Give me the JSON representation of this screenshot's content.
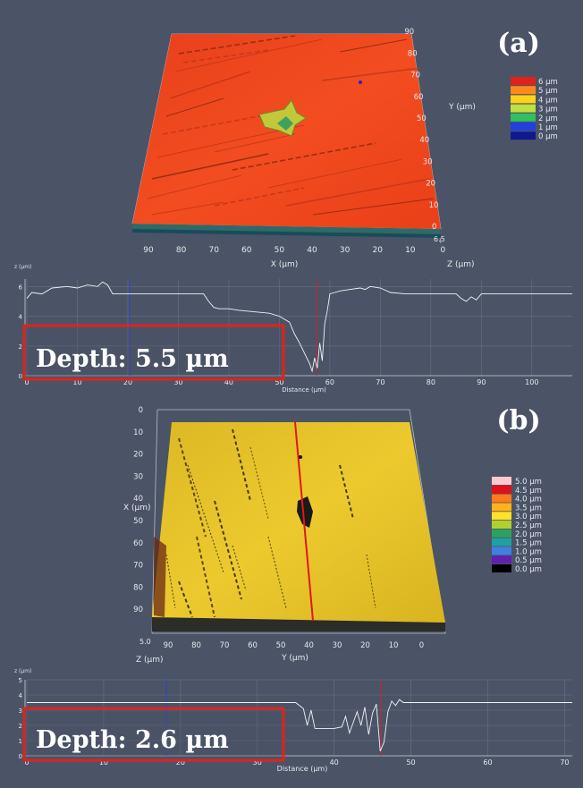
{
  "panels": [
    {
      "label": "(a)",
      "surface": {
        "x_axis_label": "X (µm)",
        "y_axis_label": "Y (µm)",
        "z_axis_label": "Z (µm)",
        "x_ticks": [
          "90",
          "80",
          "70",
          "60",
          "50",
          "40",
          "30",
          "20",
          "10",
          "0"
        ],
        "y_ticks": [
          "0",
          "10",
          "20",
          "30",
          "40",
          "50",
          "60",
          "70",
          "80",
          "90"
        ],
        "z_tick": "6.5",
        "surface_color": "#f04a1e",
        "legend": [
          {
            "label": "6 µm",
            "color": "#e0221a"
          },
          {
            "label": "5 µm",
            "color": "#ff8a1a"
          },
          {
            "label": "4 µm",
            "color": "#ffd21a"
          },
          {
            "label": "3 µm",
            "color": "#bfe040"
          },
          {
            "label": "2 µm",
            "color": "#2fc060"
          },
          {
            "label": "1 µm",
            "color": "#2040e0"
          },
          {
            "label": "0 µm",
            "color": "#101890"
          }
        ]
      },
      "profile": {
        "y_unit": "z (µm)",
        "y_ticks": [
          "0",
          "2",
          "4",
          "6"
        ],
        "x_ticks": [
          "0",
          "10",
          "20",
          "30",
          "40",
          "50",
          "60",
          "70",
          "80",
          "90",
          "100"
        ],
        "x_label": "Distance (µm)",
        "annotation": "Depth: 5.5 µm"
      }
    },
    {
      "label": "(b)",
      "surface": {
        "x_axis_label": "X (µm)",
        "y_axis_label": "Y (µm)",
        "z_axis_label": "Z (µm)",
        "x_ticks": [
          "0",
          "10",
          "20",
          "30",
          "40",
          "50",
          "60",
          "70",
          "80",
          "90"
        ],
        "y_ticks": [
          "90",
          "80",
          "70",
          "60",
          "50",
          "40",
          "30",
          "20",
          "10",
          "0"
        ],
        "z_tick": "5.0",
        "surface_color": "#e6c52a",
        "legend": [
          {
            "label": "5.0 µm",
            "color": "#ffc8d0"
          },
          {
            "label": "4.5 µm",
            "color": "#e0101a"
          },
          {
            "label": "4.0 µm",
            "color": "#ff7a1a"
          },
          {
            "label": "3.5 µm",
            "color": "#ffb21a"
          },
          {
            "label": "3.0 µm",
            "color": "#ffe02a"
          },
          {
            "label": "2.5 µm",
            "color": "#b0d030"
          },
          {
            "label": "2.0 µm",
            "color": "#30a060"
          },
          {
            "label": "1.5 µm",
            "color": "#20a0a0"
          },
          {
            "label": "1.0 µm",
            "color": "#4080e0"
          },
          {
            "label": "0.5 µm",
            "color": "#6020b0"
          },
          {
            "label": "0.0 µm",
            "color": "#000000"
          }
        ]
      },
      "profile": {
        "y_unit": "z (µm)",
        "y_ticks": [
          "0",
          "1",
          "2",
          "3",
          "4",
          "5"
        ],
        "x_ticks": [
          "0",
          "10",
          "20",
          "30",
          "40",
          "50",
          "60",
          "70"
        ],
        "x_label": "Distance (µm)",
        "annotation": "Depth: 2.6 µm"
      }
    }
  ],
  "chart_data": [
    {
      "type": "line",
      "title": "",
      "xlabel": "Distance (µm)",
      "ylabel": "z (µm)",
      "xlim": [
        0,
        108
      ],
      "ylim": [
        0,
        6.5
      ],
      "x": [
        0,
        1,
        3,
        5,
        8,
        10,
        12,
        14,
        15,
        16,
        17,
        19,
        20,
        22,
        25,
        28,
        30,
        33,
        35,
        36,
        37,
        38,
        40,
        42,
        45,
        48,
        50,
        52,
        53,
        54,
        55,
        56,
        56.5,
        57,
        57.5,
        58,
        58.5,
        59,
        59.5,
        60,
        61,
        62,
        64,
        66,
        67,
        68,
        70,
        72,
        75,
        80,
        85,
        86,
        87,
        88,
        89,
        90,
        95,
        100,
        108
      ],
      "series": [
        {
          "values": [
            5.2,
            5.6,
            5.5,
            5.9,
            6.0,
            5.9,
            6.1,
            6.0,
            6.3,
            6.1,
            5.5,
            5.5,
            5.5,
            5.5,
            5.5,
            5.5,
            5.5,
            5.5,
            5.5,
            5.0,
            4.6,
            4.5,
            4.5,
            4.4,
            4.3,
            4.2,
            4.0,
            3.6,
            2.8,
            2.2,
            1.5,
            0.8,
            0.3,
            1.2,
            0.5,
            2.2,
            1.0,
            3.5,
            4.4,
            5.5,
            5.6,
            5.7,
            5.8,
            5.9,
            5.8,
            6.0,
            5.9,
            5.6,
            5.5,
            5.5,
            5.5,
            5.2,
            5.0,
            5.3,
            5.1,
            5.5,
            5.5,
            5.5,
            5.5
          ]
        }
      ],
      "annotations": [
        "Depth: 5.5 µm"
      ]
    },
    {
      "type": "line",
      "title": "",
      "xlabel": "Distance (µm)",
      "ylabel": "z (µm)",
      "xlim": [
        0,
        71
      ],
      "ylim": [
        0,
        5
      ],
      "x": [
        0,
        10,
        20,
        30,
        35,
        36,
        36.5,
        37,
        37.5,
        38,
        39,
        40,
        41,
        41.5,
        42,
        42.5,
        43,
        43.5,
        44,
        44.5,
        45,
        45.5,
        46,
        46.5,
        47,
        47.5,
        48,
        48.5,
        49,
        50,
        60,
        71
      ],
      "series": [
        {
          "values": [
            3.5,
            3.5,
            3.5,
            3.5,
            3.5,
            3.1,
            2.0,
            3.0,
            1.8,
            1.8,
            1.8,
            1.8,
            1.9,
            2.6,
            1.5,
            2.2,
            2.9,
            2.0,
            3.2,
            1.4,
            2.8,
            3.4,
            0.3,
            0.9,
            2.9,
            3.6,
            3.3,
            3.7,
            3.5,
            3.5,
            3.5,
            3.5
          ]
        }
      ],
      "annotations": [
        "Depth: 2.6 µm"
      ]
    }
  ]
}
